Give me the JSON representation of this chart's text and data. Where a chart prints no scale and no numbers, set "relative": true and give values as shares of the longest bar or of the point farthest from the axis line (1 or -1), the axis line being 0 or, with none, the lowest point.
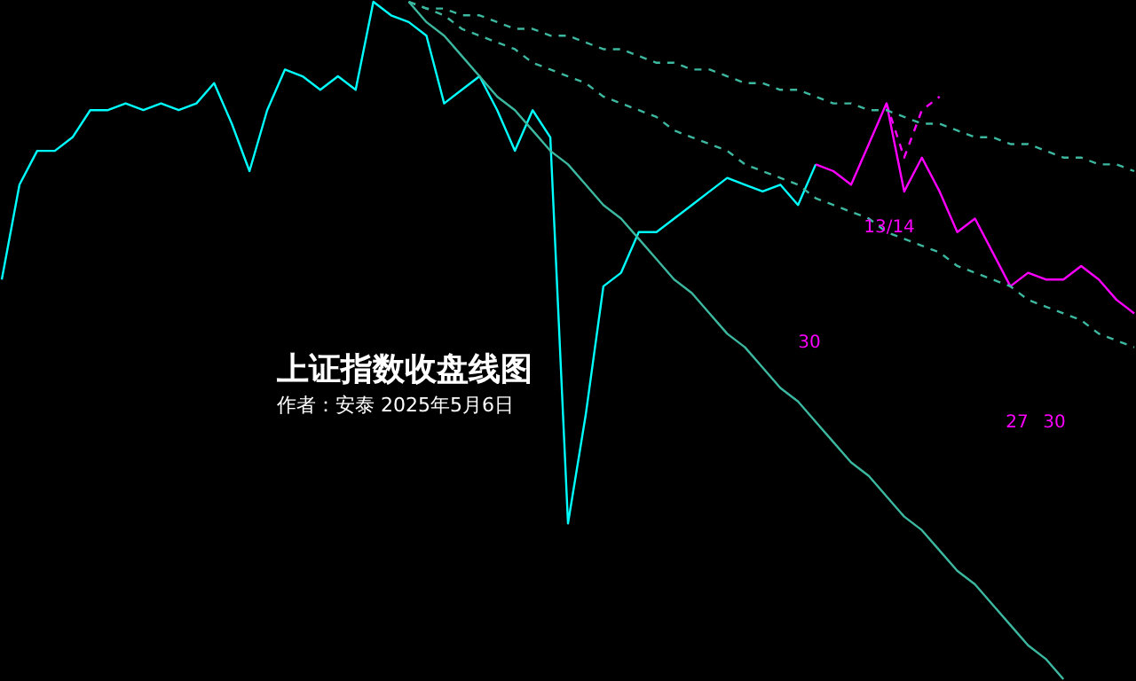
{
  "chart_data": {
    "type": "line",
    "title": "上证指数收盘线图",
    "subtitle": "作者：安泰 2025年5月6日",
    "relative": true,
    "tick_labels": false,
    "grid": false,
    "categories": [
      null,
      null,
      null,
      null,
      null,
      null,
      null,
      null,
      null,
      null,
      null,
      null,
      null,
      null,
      null,
      null,
      null,
      null,
      null,
      null,
      null,
      null,
      null,
      null,
      null,
      null,
      null,
      null,
      null,
      null,
      null,
      null,
      null,
      null,
      null,
      null,
      null,
      null,
      null,
      null,
      null,
      null,
      null,
      null,
      null,
      null,
      null,
      null,
      null,
      null,
      null,
      null,
      null,
      null,
      null,
      null,
      null,
      null,
      null,
      null,
      null,
      null,
      null,
      null,
      null
    ],
    "series": [
      {
        "color": "#00ffff",
        "values": [
          0.59,
          0.73,
          0.78,
          0.78,
          0.8,
          0.84,
          0.84,
          0.85,
          0.84,
          0.85,
          0.84,
          0.85,
          0.88,
          0.82,
          0.75,
          0.84,
          0.9,
          0.89,
          0.87,
          0.89,
          0.87,
          1.0,
          0.98,
          0.97,
          0.95,
          0.85,
          0.87,
          0.89,
          0.84,
          0.78,
          0.84,
          0.8,
          0.23,
          0.39,
          0.58,
          0.6,
          0.66,
          0.66,
          0.68,
          0.7,
          0.72,
          0.74,
          0.73,
          0.72,
          0.73,
          0.7,
          0.76,
          null,
          null,
          null,
          null,
          null,
          null,
          null,
          null,
          null,
          null,
          null,
          null,
          null,
          null,
          null,
          null,
          null,
          null
        ]
      },
      {
        "color": "#ff00ff",
        "values": [
          null,
          null,
          null,
          null,
          null,
          null,
          null,
          null,
          null,
          null,
          null,
          null,
          null,
          null,
          null,
          null,
          null,
          null,
          null,
          null,
          null,
          null,
          null,
          null,
          null,
          null,
          null,
          null,
          null,
          null,
          null,
          null,
          null,
          null,
          null,
          null,
          null,
          null,
          null,
          null,
          null,
          null,
          null,
          null,
          null,
          null,
          0.76,
          0.75,
          0.73,
          0.79,
          0.85,
          0.72,
          0.77,
          0.72,
          0.66,
          0.68,
          0.63,
          0.58,
          0.6,
          0.59,
          0.59,
          0.61,
          0.59,
          0.56,
          0.54
        ]
      },
      {
        "color": "#ff00ff",
        "line_style": "dashed",
        "values": [
          null,
          null,
          null,
          null,
          null,
          null,
          null,
          null,
          null,
          null,
          null,
          null,
          null,
          null,
          null,
          null,
          null,
          null,
          null,
          null,
          null,
          null,
          null,
          null,
          null,
          null,
          null,
          null,
          null,
          null,
          null,
          null,
          null,
          null,
          null,
          null,
          null,
          null,
          null,
          null,
          null,
          null,
          null,
          null,
          null,
          null,
          null,
          null,
          null,
          null,
          0.85,
          0.77,
          0.84,
          0.86,
          null,
          null,
          null,
          null,
          null,
          null,
          null,
          null,
          null,
          null,
          null
        ]
      },
      {
        "color": "#3cb8a0",
        "line_style": "dashed",
        "values": [
          null,
          null,
          null,
          null,
          null,
          null,
          null,
          null,
          null,
          null,
          null,
          null,
          null,
          null,
          null,
          null,
          null,
          null,
          null,
          null,
          null,
          null,
          null,
          1.0,
          0.99,
          0.99,
          0.98,
          0.98,
          0.97,
          0.96,
          0.96,
          0.95,
          0.95,
          0.94,
          0.93,
          0.93,
          0.92,
          0.91,
          0.91,
          0.9,
          0.9,
          0.89,
          0.88,
          0.88,
          0.87,
          0.87,
          0.86,
          0.85,
          0.85,
          0.84,
          0.84,
          0.83,
          0.82,
          0.82,
          0.81,
          0.8,
          0.8,
          0.79,
          0.79,
          0.78,
          0.77,
          0.77,
          0.76,
          0.76,
          0.75
        ]
      },
      {
        "color": "#3cb8a0",
        "line_style": "dashed",
        "values": [
          null,
          null,
          null,
          null,
          null,
          null,
          null,
          null,
          null,
          null,
          null,
          null,
          null,
          null,
          null,
          null,
          null,
          null,
          null,
          null,
          null,
          null,
          null,
          1.0,
          0.99,
          0.98,
          0.96,
          0.95,
          0.94,
          0.93,
          0.91,
          0.9,
          0.89,
          0.88,
          0.86,
          0.85,
          0.84,
          0.83,
          0.81,
          0.8,
          0.79,
          0.78,
          0.76,
          0.75,
          0.74,
          0.73,
          0.71,
          0.7,
          0.69,
          0.68,
          0.66,
          0.65,
          0.64,
          0.63,
          0.61,
          0.6,
          0.59,
          0.58,
          0.56,
          0.55,
          0.54,
          0.53,
          0.51,
          0.5,
          0.49
        ]
      },
      {
        "color": "#3cb8a0",
        "line_style": "solid",
        "values": [
          null,
          null,
          null,
          null,
          null,
          null,
          null,
          null,
          null,
          null,
          null,
          null,
          null,
          null,
          null,
          null,
          null,
          null,
          null,
          null,
          null,
          null,
          null,
          1.0,
          0.97,
          0.95,
          0.92,
          0.89,
          0.86,
          0.84,
          0.81,
          0.78,
          0.76,
          0.73,
          0.7,
          0.68,
          0.65,
          0.62,
          0.59,
          0.57,
          0.54,
          0.51,
          0.49,
          0.46,
          0.43,
          0.41,
          0.38,
          0.35,
          0.32,
          0.3,
          0.27,
          0.24,
          0.22,
          0.19,
          0.16,
          0.14,
          0.11,
          0.08,
          0.05,
          0.03,
          0.0,
          null,
          null,
          null,
          null
        ]
      }
    ],
    "annotations": [
      "13/14",
      "30",
      "27",
      "30"
    ]
  }
}
